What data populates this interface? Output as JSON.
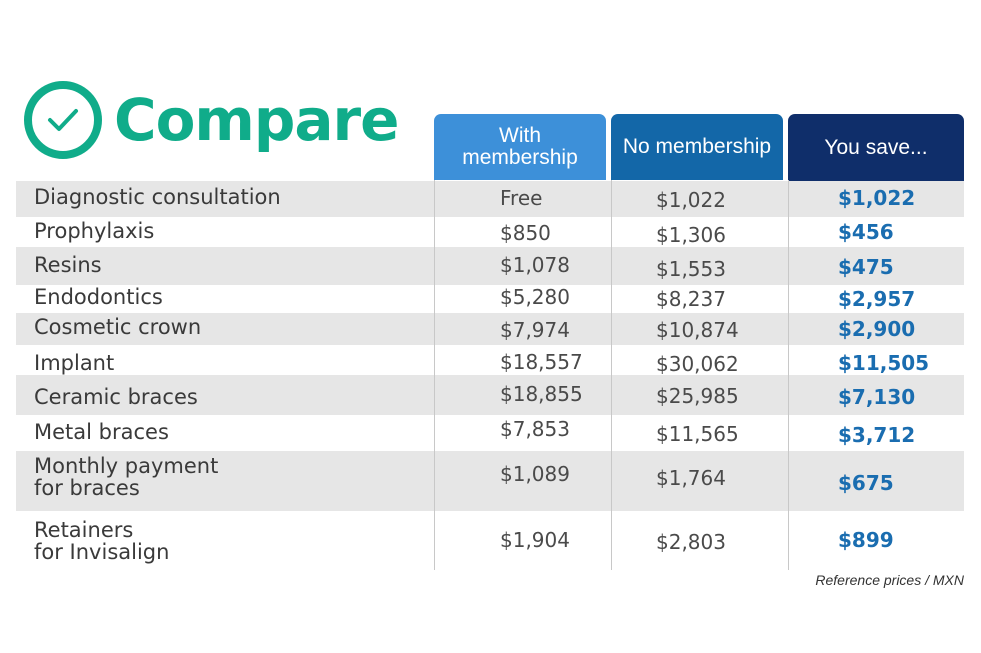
{
  "header": {
    "title": "Compare",
    "icon": "check-circle-icon",
    "accent": "#10ac8a"
  },
  "columns": {
    "with": "With membership",
    "no": "No membership",
    "save": "You save..."
  },
  "rows": [
    {
      "service": "Diagnostic consultation",
      "with": "Free",
      "no": "$1,022",
      "save": "$1,022"
    },
    {
      "service": "Prophylaxis",
      "with": "$850",
      "no": "$1,306",
      "save": "$456"
    },
    {
      "service": "Resins",
      "with": "$1,078",
      "no": "$1,553",
      "save": "$475"
    },
    {
      "service": "Endodontics",
      "with": "$5,280",
      "no": "$8,237",
      "save": "$2,957"
    },
    {
      "service": "Cosmetic crown",
      "with": "$7,974",
      "no": "$10,874",
      "save": "$2,900"
    },
    {
      "service": "Implant",
      "with": "$18,557",
      "no": "$30,062",
      "save": "$11,505"
    },
    {
      "service": "Ceramic braces",
      "with": "$18,855",
      "no": "$25,985",
      "save": "$7,130"
    },
    {
      "service": "Metal braces",
      "with": "$7,853",
      "no": "$11,565",
      "save": "$3,712"
    },
    {
      "service": "Monthly payment\nfor braces",
      "with": "$1,089",
      "no": "$1,764",
      "save": "$675"
    },
    {
      "service": "Retainers\nfor Invisalign",
      "with": "$1,904",
      "no": "$2,803",
      "save": "$899"
    }
  ],
  "footnote": "Reference prices / MXN"
}
